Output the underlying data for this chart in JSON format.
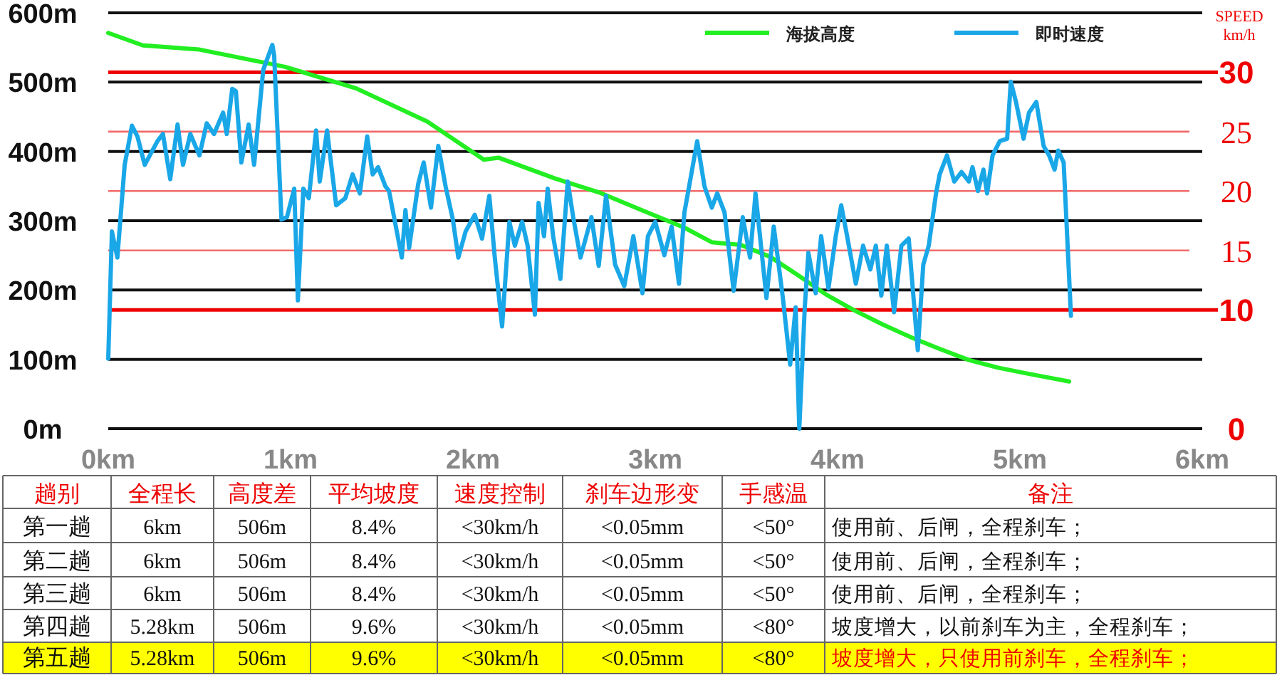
{
  "chart_data": [
    {
      "type": "line",
      "y2label": "SPEED km/h",
      "xlim": [
        0,
        6
      ],
      "xticks": [
        {
          "value": 0,
          "label": "0km"
        },
        {
          "value": 1,
          "label": "1km"
        },
        {
          "value": 2,
          "label": "2km"
        },
        {
          "value": 3,
          "label": "3km"
        },
        {
          "value": 4,
          "label": "4km"
        },
        {
          "value": 5,
          "label": "5km"
        },
        {
          "value": 6,
          "label": "6km"
        }
      ],
      "ylim": [
        0,
        600
      ],
      "yticks": [
        {
          "value": 0,
          "label": "0m"
        },
        {
          "value": 100,
          "label": "100m"
        },
        {
          "value": 200,
          "label": "200m"
        },
        {
          "value": 300,
          "label": "300m"
        },
        {
          "value": 400,
          "label": "400m"
        },
        {
          "value": 500,
          "label": "500m"
        },
        {
          "value": 600,
          "label": "600m"
        }
      ],
      "y2lim": [
        0,
        35
      ],
      "y2ticks": [
        0,
        10,
        15,
        20,
        25,
        30
      ],
      "grid": true,
      "legend": "top right",
      "marker": "none",
      "line_style": "solid",
      "series": [
        {
          "name": "海拔高度",
          "color": "#22ee22",
          "x": [
            0,
            0.19,
            0.5,
            0.97,
            1.36,
            1.75,
            2.06,
            2.14,
            2.45,
            2.69,
            2.92,
            3.16,
            3.31,
            3.47,
            3.63,
            3.78,
            3.94,
            4.09,
            4.25,
            4.41,
            4.56,
            4.72,
            4.88,
            5.03,
            5.19,
            5.27
          ],
          "values": [
            571,
            553,
            547,
            522,
            491,
            443,
            388,
            391,
            361,
            341,
            316,
            290,
            269,
            265,
            248,
            222,
            193,
            171,
            150,
            131,
            115,
            99,
            88,
            80,
            72,
            68
          ]
        },
        {
          "name": "即时速度",
          "color": "#1aa7e8",
          "axis": "y2",
          "x": [
            0,
            0.02,
            0.05,
            0.09,
            0.13,
            0.16,
            0.2,
            0.27,
            0.3,
            0.34,
            0.38,
            0.41,
            0.45,
            0.5,
            0.54,
            0.58,
            0.63,
            0.65,
            0.68,
            0.7,
            0.73,
            0.77,
            0.8,
            0.85,
            0.9,
            0.91,
            0.95,
            0.98,
            1.02,
            1.04,
            1.07,
            1.1,
            1.14,
            1.16,
            1.2,
            1.25,
            1.3,
            1.34,
            1.38,
            1.42,
            1.45,
            1.48,
            1.52,
            1.54,
            1.61,
            1.63,
            1.65,
            1.7,
            1.73,
            1.77,
            1.81,
            1.85,
            1.89,
            1.92,
            1.96,
            2.01,
            2.05,
            2.09,
            2.12,
            2.16,
            2.2,
            2.23,
            2.27,
            2.3,
            2.34,
            2.36,
            2.39,
            2.41,
            2.44,
            2.48,
            2.52,
            2.55,
            2.59,
            2.65,
            2.69,
            2.73,
            2.78,
            2.83,
            2.88,
            2.93,
            2.96,
            3.0,
            3.05,
            3.09,
            3.13,
            3.16,
            3.2,
            3.23,
            3.27,
            3.31,
            3.34,
            3.38,
            3.43,
            3.48,
            3.52,
            3.55,
            3.61,
            3.65,
            3.7,
            3.74,
            3.77,
            3.79,
            3.82,
            3.84,
            3.88,
            3.91,
            3.95,
            3.99,
            4.02,
            4.05,
            4.1,
            4.14,
            4.18,
            4.21,
            4.24,
            4.27,
            4.31,
            4.35,
            4.39,
            4.44,
            4.47,
            4.5,
            4.54,
            4.56,
            4.6,
            4.64,
            4.68,
            4.72,
            4.74,
            4.77,
            4.8,
            4.82,
            4.85,
            4.89,
            4.93,
            4.95,
            4.98,
            5.02,
            5.05,
            5.09,
            5.13,
            5.16,
            5.19,
            5.21,
            5.24,
            5.28
          ],
          "values": [
            5.9,
            16.6,
            14.4,
            22.2,
            25.5,
            24.6,
            22.2,
            24.2,
            24.8,
            21,
            25.6,
            22.2,
            24.8,
            23,
            25.7,
            24.8,
            26.6,
            24.8,
            28.6,
            28.4,
            22.4,
            25.6,
            22.2,
            30.2,
            32.3,
            31.4,
            17.6,
            17.8,
            20.2,
            10.8,
            20.2,
            19.4,
            25.1,
            20.8,
            25.1,
            18.8,
            19.4,
            21.4,
            19.8,
            24.6,
            21.4,
            22,
            20.4,
            20,
            14.4,
            18.4,
            15.2,
            20.6,
            22.4,
            18.6,
            23.8,
            20.4,
            17.6,
            14.4,
            16.6,
            18,
            16,
            19.6,
            14.4,
            8.6,
            17.4,
            15.4,
            17.4,
            15.4,
            9.6,
            19,
            16.2,
            20.2,
            16.2,
            12.6,
            20.8,
            17.8,
            14.4,
            17.8,
            13.7,
            19.6,
            13.8,
            12,
            16.2,
            11.4,
            16.2,
            17.4,
            14.6,
            17,
            12.2,
            18.2,
            21.6,
            24.2,
            20.4,
            18.6,
            19.8,
            18.2,
            11.6,
            17.8,
            14.4,
            19.8,
            11,
            17,
            11,
            5.4,
            10.2,
            0,
            10.2,
            14.8,
            11.4,
            16.2,
            11.8,
            16.2,
            18.8,
            16.4,
            12.2,
            15.4,
            13.4,
            15.4,
            11.2,
            15.4,
            9.8,
            15.4,
            16,
            6.6,
            13.8,
            15.4,
            19.8,
            21.4,
            23,
            20.8,
            21.6,
            20.8,
            22,
            20,
            21.8,
            19.8,
            23,
            24.2,
            24.4,
            29.2,
            27.4,
            24.4,
            26.6,
            27.5,
            23.8,
            23,
            21.8,
            23.4,
            22.4,
            9.5
          ]
        }
      ]
    },
    {
      "type": "other",
      "categories": [
        "趟别",
        "全程长",
        "高度差",
        "平均坡度",
        "速度控制",
        "刹车边形变",
        "手感温",
        "备注"
      ],
      "annotations": [
        "第一趟",
        "6km",
        "506m",
        "8.4%",
        "<30km/h",
        "<0.05mm",
        "<50°",
        "使用前、后闸，全程刹车；",
        "第二趟",
        "6km",
        "506m",
        "8.4%",
        "<30km/h",
        "<0.05mm",
        "<50°",
        "使用前、后闸，全程刹车；",
        "第三趟",
        "6km",
        "506m",
        "8.4%",
        "<30km/h",
        "<0.05mm",
        "<50°",
        "使用前、后闸，全程刹车；",
        "第四趟",
        "5.28km",
        "506m",
        "9.6%",
        "<30km/h",
        "<0.05mm",
        "<80°",
        "坡度增大，以前刹车为主，全程刹车；",
        "第五趟",
        "5.28km",
        "506m",
        "9.6%",
        "<30km/h",
        "<0.05mm",
        "<80°",
        "坡度增大，只使用前刹车，全程刹车；"
      ]
    }
  ]
}
